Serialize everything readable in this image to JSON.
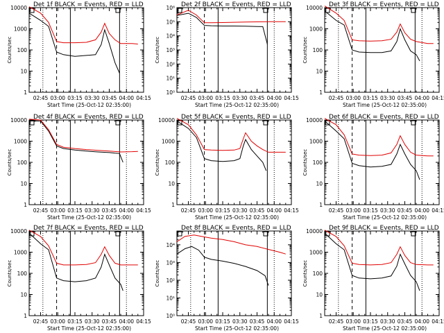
{
  "colors": {
    "events": "#000000",
    "lld": "#e00000"
  },
  "chart_data": [
    {
      "type": "line",
      "title": "Det 1f BLACK = Events, RED = LLD",
      "xlabel": "Start Time (25-Oct-12 02:35:00)",
      "ylabel": "Counts/sec",
      "x_ticks": [
        "02:45",
        "03:00",
        "03:15",
        "03:30",
        "03:45",
        "04:00",
        "04:15"
      ],
      "y_ticks": [
        "1",
        "10",
        "100",
        "1000",
        "10000"
      ],
      "ylim": [
        1,
        10000
      ],
      "markers": {
        "dotted": [
          "02:47",
          "04:00"
        ],
        "dashed": "02:59",
        "solid": "03:11",
        "solid_end": "03:54"
      },
      "series": [
        {
          "name": "BLACK = Events",
          "x": [
            "02:35",
            "02:45",
            "02:52",
            "02:59",
            "03:05",
            "03:15",
            "03:25",
            "03:33",
            "03:38",
            "03:41",
            "03:45",
            "03:50",
            "03:54"
          ],
          "y": [
            5500,
            2500,
            1300,
            80,
            60,
            50,
            55,
            60,
            180,
            900,
            200,
            25,
            8
          ]
        },
        {
          "name": "RED = LLD",
          "x": [
            "02:35",
            "02:45",
            "02:52",
            "02:59",
            "03:05",
            "03:15",
            "03:25",
            "03:33",
            "03:38",
            "03:41",
            "03:45",
            "03:50",
            "03:55",
            "04:05",
            "04:10"
          ],
          "y": [
            11000,
            5500,
            2000,
            250,
            220,
            220,
            230,
            300,
            700,
            1800,
            600,
            300,
            200,
            200,
            190
          ]
        }
      ]
    },
    {
      "type": "line",
      "title": "Det 2f BLACK = Events, RED = LLD",
      "xlabel": "Start Time (25-Oct-12 02:35:00)",
      "ylabel": "Counts/sec",
      "x_ticks": [
        "02:45",
        "03:00",
        "03:15",
        "03:30",
        "03:45",
        "04:00",
        "04:15"
      ],
      "y_ticks": [
        "10⁰",
        "10¹",
        "10²",
        "10³",
        "10⁴",
        "10⁵",
        "10⁶"
      ],
      "ylim": [
        1,
        1000000
      ],
      "markers": {
        "dotted": [
          "02:47",
          "04:00"
        ],
        "dashed": "02:59",
        "solid": "03:11",
        "solid_end": "03:54"
      },
      "series": [
        {
          "name": "BLACK = Events",
          "x": [
            "02:35",
            "02:45",
            "02:52",
            "02:59",
            "03:05",
            "03:15",
            "03:25",
            "03:35",
            "03:45",
            "03:50",
            "03:54"
          ],
          "y": [
            280000,
            400000,
            200000,
            55000,
            52000,
            50000,
            50000,
            48000,
            46000,
            45000,
            2500
          ]
        },
        {
          "name": "RED = LLD",
          "x": [
            "02:35",
            "02:45",
            "02:52",
            "02:59",
            "03:05",
            "03:15",
            "03:25",
            "03:35",
            "03:45",
            "03:55",
            "04:05",
            "04:10"
          ],
          "y": [
            300000,
            650000,
            300000,
            85000,
            85000,
            88000,
            92000,
            95000,
            98000,
            100000,
            100000,
            100000
          ]
        }
      ]
    },
    {
      "type": "line",
      "title": "Det 3f BLACK = Events, RED = LLD",
      "xlabel": "Start Time (25-Oct-12 02:35:00)",
      "ylabel": "Counts/sec",
      "x_ticks": [
        "02:45",
        "03:00",
        "03:15",
        "03:30",
        "03:45",
        "04:00",
        "04:15"
      ],
      "y_ticks": [
        "1",
        "10",
        "100",
        "1000",
        "10000"
      ],
      "ylim": [
        1,
        10000
      ],
      "markers": {
        "dotted": [
          "02:47",
          "04:00"
        ],
        "dashed": "02:59",
        "solid": "03:11",
        "solid_end": "03:54"
      },
      "series": [
        {
          "name": "BLACK = Events",
          "x": [
            "02:35",
            "02:45",
            "02:52",
            "02:59",
            "03:05",
            "03:15",
            "03:25",
            "03:33",
            "03:38",
            "03:41",
            "03:45",
            "03:50",
            "03:55",
            "03:58"
          ],
          "y": [
            7000,
            2500,
            1500,
            100,
            80,
            75,
            75,
            90,
            250,
            1000,
            300,
            90,
            60,
            30
          ]
        },
        {
          "name": "RED = LLD",
          "x": [
            "02:35",
            "02:45",
            "02:52",
            "02:59",
            "03:05",
            "03:15",
            "03:25",
            "03:33",
            "03:38",
            "03:41",
            "03:45",
            "03:50",
            "03:55",
            "04:05",
            "04:10"
          ],
          "y": [
            12000,
            5500,
            2500,
            300,
            270,
            260,
            270,
            320,
            700,
            1700,
            650,
            320,
            250,
            200,
            200
          ]
        }
      ]
    },
    {
      "type": "line",
      "title": "Det 4f BLACK = Events, RED = LLD",
      "xlabel": "Start Time (25-Oct-12 02:35:00)",
      "ylabel": "Counts/sec",
      "x_ticks": [
        "02:45",
        "03:00",
        "03:15",
        "03:30",
        "03:45",
        "04:00",
        "04:15"
      ],
      "y_ticks": [
        "1",
        "10",
        "100",
        "1000",
        "10000"
      ],
      "ylim": [
        1,
        10000
      ],
      "markers": {
        "dotted": [
          "02:47",
          "04:00"
        ],
        "dashed": "02:59",
        "solid": "03:11",
        "solid_end": "03:54"
      },
      "series": [
        {
          "name": "BLACK = Events",
          "x": [
            "02:35",
            "02:45",
            "02:52",
            "02:59",
            "03:05",
            "03:15",
            "03:25",
            "03:35",
            "03:45",
            "03:50",
            "03:54",
            "03:57"
          ],
          "y": [
            9000,
            9000,
            3000,
            600,
            450,
            380,
            340,
            310,
            290,
            270,
            260,
            100
          ]
        },
        {
          "name": "RED = LLD",
          "x": [
            "02:35",
            "02:45",
            "02:52",
            "02:59",
            "03:05",
            "03:15",
            "03:25",
            "03:35",
            "03:45",
            "03:55",
            "04:05",
            "04:10"
          ],
          "y": [
            11000,
            10000,
            3500,
            700,
            520,
            450,
            400,
            370,
            340,
            310,
            320,
            330
          ]
        }
      ]
    },
    {
      "type": "line",
      "title": "Det 5f BLACK = Events, RED = LLD",
      "xlabel": "Start Time (25-Oct-12 02:35:00)",
      "ylabel": "Counts/sec",
      "x_ticks": [
        "02:45",
        "03:00",
        "03:15",
        "03:30",
        "03:45",
        "04:00",
        "04:15"
      ],
      "y_ticks": [
        "1",
        "10",
        "100",
        "1000",
        "10000"
      ],
      "ylim": [
        1,
        10000
      ],
      "markers": {
        "dotted": [
          "02:47",
          "04:00"
        ],
        "dashed": "02:59",
        "solid": "03:11",
        "solid_end": "03:54"
      },
      "series": [
        {
          "name": "BLACK = Events",
          "x": [
            "02:35",
            "02:45",
            "02:52",
            "02:59",
            "03:05",
            "03:15",
            "03:25",
            "03:30",
            "03:33",
            "03:35",
            "03:40",
            "03:45",
            "03:50",
            "03:53"
          ],
          "y": [
            9000,
            4000,
            1500,
            150,
            120,
            110,
            120,
            150,
            600,
            1200,
            400,
            200,
            100,
            40
          ]
        },
        {
          "name": "RED = LLD",
          "x": [
            "02:35",
            "02:45",
            "02:52",
            "02:59",
            "03:05",
            "03:15",
            "03:25",
            "03:30",
            "03:33",
            "03:35",
            "03:40",
            "03:45",
            "03:50",
            "03:55",
            "04:05",
            "04:10"
          ],
          "y": [
            12000,
            6000,
            2000,
            400,
            380,
            370,
            380,
            450,
            1300,
            2500,
            1000,
            600,
            400,
            300,
            300,
            300
          ]
        }
      ]
    },
    {
      "type": "line",
      "title": "Det 6f BLACK = Events, RED = LLD",
      "xlabel": "Start Time (25-Oct-12 02:35:00)",
      "ylabel": "Counts/sec",
      "x_ticks": [
        "02:45",
        "03:00",
        "03:15",
        "03:30",
        "03:45",
        "04:00",
        "04:15"
      ],
      "y_ticks": [
        "1",
        "10",
        "100",
        "1000",
        "10000"
      ],
      "ylim": [
        1,
        10000
      ],
      "markers": {
        "dotted": [
          "02:47",
          "04:00"
        ],
        "dashed": "02:59",
        "solid": "03:11",
        "solid_end": "03:54"
      },
      "series": [
        {
          "name": "BLACK = Events",
          "x": [
            "02:35",
            "02:45",
            "02:52",
            "02:59",
            "03:05",
            "03:15",
            "03:25",
            "03:33",
            "03:38",
            "03:41",
            "03:45",
            "03:50",
            "03:55",
            "03:58"
          ],
          "y": [
            9000,
            3000,
            1300,
            90,
            70,
            60,
            65,
            80,
            250,
            700,
            250,
            80,
            40,
            15
          ]
        },
        {
          "name": "RED = LLD",
          "x": [
            "02:35",
            "02:45",
            "02:52",
            "02:59",
            "03:05",
            "03:15",
            "03:25",
            "03:33",
            "03:38",
            "03:41",
            "03:45",
            "03:50",
            "03:55",
            "04:05",
            "04:10"
          ],
          "y": [
            12000,
            6000,
            2000,
            250,
            220,
            210,
            220,
            280,
            700,
            1800,
            700,
            300,
            220,
            200,
            200
          ]
        }
      ]
    },
    {
      "type": "line",
      "title": "Det 7f BLACK = Events, RED = LLD",
      "xlabel": "Start Time (25-Oct-12 02:35:00)",
      "ylabel": "Counts/sec",
      "x_ticks": [
        "02:45",
        "03:00",
        "03:15",
        "03:30",
        "03:45",
        "04:00",
        "04:15"
      ],
      "y_ticks": [
        "1",
        "10",
        "100",
        "1000",
        "10000"
      ],
      "ylim": [
        1,
        10000
      ],
      "markers": {
        "dotted": [
          "02:47",
          "04:00"
        ],
        "dashed": "02:59",
        "solid": "03:11",
        "solid_end": "03:54"
      },
      "series": [
        {
          "name": "BLACK = Events",
          "x": [
            "02:35",
            "02:45",
            "02:52",
            "02:59",
            "03:05",
            "03:15",
            "03:25",
            "03:33",
            "03:38",
            "03:41",
            "03:45",
            "03:50",
            "03:55",
            "03:57"
          ],
          "y": [
            8000,
            2500,
            1300,
            60,
            45,
            40,
            45,
            60,
            200,
            800,
            250,
            60,
            30,
            15
          ]
        },
        {
          "name": "RED = LLD",
          "x": [
            "02:35",
            "02:45",
            "02:52",
            "02:59",
            "03:05",
            "03:15",
            "03:25",
            "03:33",
            "03:38",
            "03:41",
            "03:45",
            "03:50",
            "03:55",
            "04:05",
            "04:10"
          ],
          "y": [
            11000,
            5500,
            2000,
            300,
            250,
            250,
            260,
            320,
            800,
            1800,
            700,
            300,
            250,
            250,
            250
          ]
        }
      ]
    },
    {
      "type": "line",
      "title": "Det 8f BLACK = Events, RED = LLD",
      "xlabel": "Start Time (25-Oct-12 02:35:00)",
      "ylabel": "Counts/sec",
      "x_ticks": [
        "02:45",
        "03:00",
        "03:15",
        "03:30",
        "03:45",
        "04:00",
        "04:15"
      ],
      "y_ticks": [
        "10⁰",
        "10¹",
        "10²",
        "10³",
        "10⁴"
      ],
      "ylim": [
        1,
        60000
      ],
      "markers": {
        "dotted": [
          "02:47",
          "04:00"
        ],
        "dashed": "02:59",
        "solid": "03:11",
        "solid_end": "03:54"
      },
      "series": [
        {
          "name": "BLACK = Events",
          "x": [
            "02:35",
            "02:42",
            "02:48",
            "02:54",
            "02:59",
            "03:05",
            "03:15",
            "03:25",
            "03:35",
            "03:45",
            "03:52",
            "03:55"
          ],
          "y": [
            3000,
            6000,
            8000,
            5000,
            2000,
            1500,
            1200,
            900,
            600,
            350,
            180,
            50
          ]
        },
        {
          "name": "RED = LLD",
          "x": [
            "02:35",
            "02:42",
            "02:50",
            "02:59",
            "03:05",
            "03:15",
            "03:25",
            "03:35",
            "03:45",
            "03:55",
            "04:05",
            "04:10"
          ],
          "y": [
            15000,
            30000,
            36000,
            28000,
            24000,
            20000,
            15000,
            10000,
            8000,
            5500,
            3800,
            3000
          ]
        }
      ]
    },
    {
      "type": "line",
      "title": "Det 9f BLACK = Events, RED = LLD",
      "xlabel": "Start Time (25-Oct-12 02:35:00)",
      "ylabel": "Counts/sec",
      "x_ticks": [
        "02:45",
        "03:00",
        "03:15",
        "03:30",
        "03:45",
        "04:00",
        "04:15"
      ],
      "y_ticks": [
        "1",
        "10",
        "100",
        "1000",
        "10000"
      ],
      "ylim": [
        1,
        10000
      ],
      "markers": {
        "dotted": [
          "02:47",
          "04:00"
        ],
        "dashed": "02:59",
        "solid": "03:11",
        "solid_end": "03:54"
      },
      "series": [
        {
          "name": "BLACK = Events",
          "x": [
            "02:35",
            "02:45",
            "02:52",
            "02:59",
            "03:05",
            "03:15",
            "03:25",
            "03:33",
            "03:38",
            "03:41",
            "03:45",
            "03:50",
            "03:55",
            "03:58"
          ],
          "y": [
            8000,
            2500,
            1300,
            80,
            60,
            55,
            60,
            75,
            220,
            800,
            280,
            80,
            40,
            15
          ]
        },
        {
          "name": "RED = LLD",
          "x": [
            "02:35",
            "02:45",
            "02:52",
            "02:59",
            "03:05",
            "03:15",
            "03:25",
            "03:33",
            "03:38",
            "03:41",
            "03:45",
            "03:50",
            "03:55",
            "04:05",
            "04:10"
          ],
          "y": [
            11000,
            5500,
            2000,
            300,
            260,
            250,
            260,
            320,
            800,
            1800,
            700,
            320,
            260,
            250,
            250
          ]
        }
      ]
    }
  ]
}
